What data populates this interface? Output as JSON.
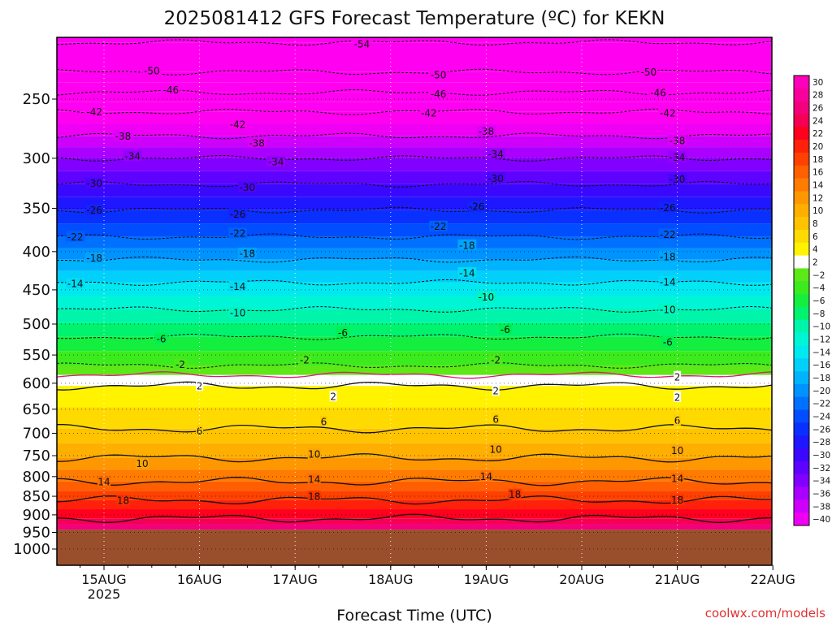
{
  "chart_data": {
    "type": "heatmap",
    "title": "2025081412 GFS Forecast Temperature (ºC) for KEKN",
    "xlabel": "Forecast Time (UTC)",
    "ylabel": "",
    "credit": "coolwx.com/models",
    "colors": {
      "ground": "#9a4f2c",
      "freezing_line": "#e8137b",
      "above_freezing_band": "#ffffff"
    },
    "x_ticks": [
      {
        "label": "15AUG",
        "sublabel": "2025",
        "day": 15
      },
      {
        "label": "16AUG",
        "sublabel": "",
        "day": 16
      },
      {
        "label": "17AUG",
        "sublabel": "",
        "day": 17
      },
      {
        "label": "18AUG",
        "sublabel": "",
        "day": 18
      },
      {
        "label": "19AUG",
        "sublabel": "",
        "day": 19
      },
      {
        "label": "20AUG",
        "sublabel": "",
        "day": 20
      },
      {
        "label": "21AUG",
        "sublabel": "",
        "day": 21
      },
      {
        "label": "22AUG",
        "sublabel": "",
        "day": 22
      }
    ],
    "xlim": [
      "2025-08-14T12",
      "2025-08-22T00"
    ],
    "y_scale": "pressure (log)",
    "y_ticks": [
      250,
      300,
      350,
      400,
      450,
      500,
      550,
      600,
      650,
      700,
      750,
      800,
      850,
      900,
      950,
      1000
    ],
    "ylim": [
      1050,
      200
    ],
    "ground_top_hpa": 942,
    "colorbar": {
      "min": -40,
      "max": 30,
      "step": 2,
      "labels": [
        30,
        28,
        26,
        24,
        22,
        20,
        18,
        16,
        14,
        12,
        10,
        8,
        6,
        4,
        2,
        -2,
        -4,
        -6,
        -8,
        -10,
        -12,
        -14,
        -16,
        -18,
        -20,
        -22,
        -24,
        -26,
        -28,
        -30,
        -32,
        -34,
        -36,
        -38,
        -40
      ]
    },
    "temperature_profile": [
      {
        "p": 210,
        "t": -54
      },
      {
        "p": 230,
        "t": -50
      },
      {
        "p": 245,
        "t": -46
      },
      {
        "p": 260,
        "t": -42
      },
      {
        "p": 280,
        "t": -38
      },
      {
        "p": 300,
        "t": -34
      },
      {
        "p": 325,
        "t": -30
      },
      {
        "p": 352,
        "t": -26
      },
      {
        "p": 382,
        "t": -22
      },
      {
        "p": 410,
        "t": -18
      },
      {
        "p": 440,
        "t": -14
      },
      {
        "p": 478,
        "t": -10
      },
      {
        "p": 520,
        "t": -6
      },
      {
        "p": 568,
        "t": -2
      },
      {
        "p": 585,
        "t": 0
      },
      {
        "p": 605,
        "t": 2
      },
      {
        "p": 690,
        "t": 6
      },
      {
        "p": 755,
        "t": 10
      },
      {
        "p": 812,
        "t": 14
      },
      {
        "p": 860,
        "t": 18
      },
      {
        "p": 910,
        "t": 22
      },
      {
        "p": 935,
        "t": 25
      }
    ],
    "contour_labels": [
      {
        "v": -54,
        "day": 17.7,
        "p": 211
      },
      {
        "v": -50,
        "day": 15.5,
        "p": 229
      },
      {
        "v": -50,
        "day": 18.5,
        "p": 232
      },
      {
        "v": -50,
        "day": 20.7,
        "p": 230
      },
      {
        "v": -46,
        "day": 15.7,
        "p": 243
      },
      {
        "v": -46,
        "day": 18.5,
        "p": 246
      },
      {
        "v": -46,
        "day": 20.8,
        "p": 245
      },
      {
        "v": -42,
        "day": 14.9,
        "p": 260
      },
      {
        "v": -42,
        "day": 16.4,
        "p": 270
      },
      {
        "v": -42,
        "day": 18.4,
        "p": 261
      },
      {
        "v": -42,
        "day": 20.9,
        "p": 261
      },
      {
        "v": -38,
        "day": 15.2,
        "p": 280
      },
      {
        "v": -38,
        "day": 16.6,
        "p": 286
      },
      {
        "v": -38,
        "day": 19.0,
        "p": 276
      },
      {
        "v": -38,
        "day": 21.0,
        "p": 284
      },
      {
        "v": -34,
        "day": 15.3,
        "p": 298
      },
      {
        "v": -34,
        "day": 16.8,
        "p": 303
      },
      {
        "v": -34,
        "day": 19.1,
        "p": 296
      },
      {
        "v": -34,
        "day": 21.0,
        "p": 299
      },
      {
        "v": -30,
        "day": 14.9,
        "p": 324
      },
      {
        "v": -30,
        "day": 16.5,
        "p": 328
      },
      {
        "v": -30,
        "day": 19.1,
        "p": 319
      },
      {
        "v": -30,
        "day": 21.0,
        "p": 320
      },
      {
        "v": -26,
        "day": 14.9,
        "p": 352
      },
      {
        "v": -26,
        "day": 16.4,
        "p": 356
      },
      {
        "v": -26,
        "day": 18.9,
        "p": 348
      },
      {
        "v": -26,
        "day": 20.9,
        "p": 349
      },
      {
        "v": -22,
        "day": 14.7,
        "p": 382
      },
      {
        "v": -22,
        "day": 16.4,
        "p": 378
      },
      {
        "v": -22,
        "day": 18.5,
        "p": 370
      },
      {
        "v": -22,
        "day": 20.9,
        "p": 379
      },
      {
        "v": -18,
        "day": 14.9,
        "p": 408
      },
      {
        "v": -18,
        "day": 16.5,
        "p": 402
      },
      {
        "v": -18,
        "day": 18.8,
        "p": 392
      },
      {
        "v": -18,
        "day": 20.9,
        "p": 406
      },
      {
        "v": -14,
        "day": 14.7,
        "p": 441
      },
      {
        "v": -14,
        "day": 16.4,
        "p": 445
      },
      {
        "v": -14,
        "day": 18.8,
        "p": 427
      },
      {
        "v": -14,
        "day": 20.9,
        "p": 439
      },
      {
        "v": -10,
        "day": 16.4,
        "p": 483
      },
      {
        "v": -10,
        "day": 19.0,
        "p": 460
      },
      {
        "v": -10,
        "day": 20.9,
        "p": 478
      },
      {
        "v": -6,
        "day": 15.6,
        "p": 523
      },
      {
        "v": -6,
        "day": 17.5,
        "p": 513
      },
      {
        "v": -6,
        "day": 19.2,
        "p": 508
      },
      {
        "v": -6,
        "day": 20.9,
        "p": 528
      },
      {
        "v": -2,
        "day": 15.8,
        "p": 566
      },
      {
        "v": -2,
        "day": 17.1,
        "p": 558
      },
      {
        "v": -2,
        "day": 19.1,
        "p": 558
      },
      {
        "v": 2,
        "day": 16.0,
        "p": 605
      },
      {
        "v": 2,
        "day": 17.4,
        "p": 625
      },
      {
        "v": 2,
        "day": 19.1,
        "p": 614
      },
      {
        "v": 2,
        "day": 21.0,
        "p": 588
      },
      {
        "v": 2,
        "day": 21.0,
        "p": 626
      },
      {
        "v": 6,
        "day": 16.0,
        "p": 695
      },
      {
        "v": 6,
        "day": 17.3,
        "p": 675
      },
      {
        "v": 6,
        "day": 19.1,
        "p": 670
      },
      {
        "v": 6,
        "day": 21.0,
        "p": 673
      },
      {
        "v": 10,
        "day": 15.4,
        "p": 768
      },
      {
        "v": 10,
        "day": 17.2,
        "p": 746
      },
      {
        "v": 10,
        "day": 19.1,
        "p": 735
      },
      {
        "v": 10,
        "day": 21.0,
        "p": 738
      },
      {
        "v": 14,
        "day": 15.0,
        "p": 812
      },
      {
        "v": 14,
        "day": 17.2,
        "p": 806
      },
      {
        "v": 14,
        "day": 19.0,
        "p": 799
      },
      {
        "v": 14,
        "day": 21.0,
        "p": 804
      },
      {
        "v": 18,
        "day": 15.2,
        "p": 861
      },
      {
        "v": 18,
        "day": 17.2,
        "p": 850
      },
      {
        "v": 18,
        "day": 19.3,
        "p": 845
      },
      {
        "v": 18,
        "day": 21.0,
        "p": 860
      }
    ]
  }
}
